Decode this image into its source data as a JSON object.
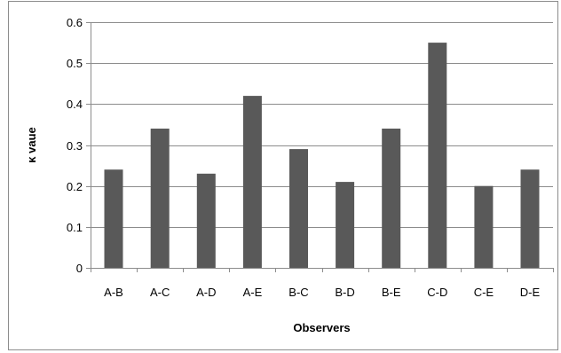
{
  "chart_data": {
    "type": "bar",
    "title": "",
    "xlabel": "Observers",
    "ylabel": "κ vaue",
    "categories": [
      "A-B",
      "A-C",
      "A-D",
      "A-E",
      "B-C",
      "B-D",
      "B-E",
      "C-D",
      "C-E",
      "D-E"
    ],
    "series": [
      {
        "values": [
          0.24,
          0.34,
          0.23,
          0.42,
          0.29,
          0.21,
          0.34,
          0.55,
          0.2,
          0.24
        ]
      }
    ],
    "ylim": [
      0,
      0.6
    ],
    "yticks": [
      "0",
      "0.1",
      "0.2",
      "0.3",
      "0.4",
      "0.5",
      "0.6"
    ],
    "ytick_values": [
      0,
      0.1,
      0.2,
      0.3,
      0.4,
      0.5,
      0.6
    ],
    "grid": "horizontal",
    "legend": "none",
    "bar_color": "#595959",
    "grid_color": "#8c8c8c"
  }
}
